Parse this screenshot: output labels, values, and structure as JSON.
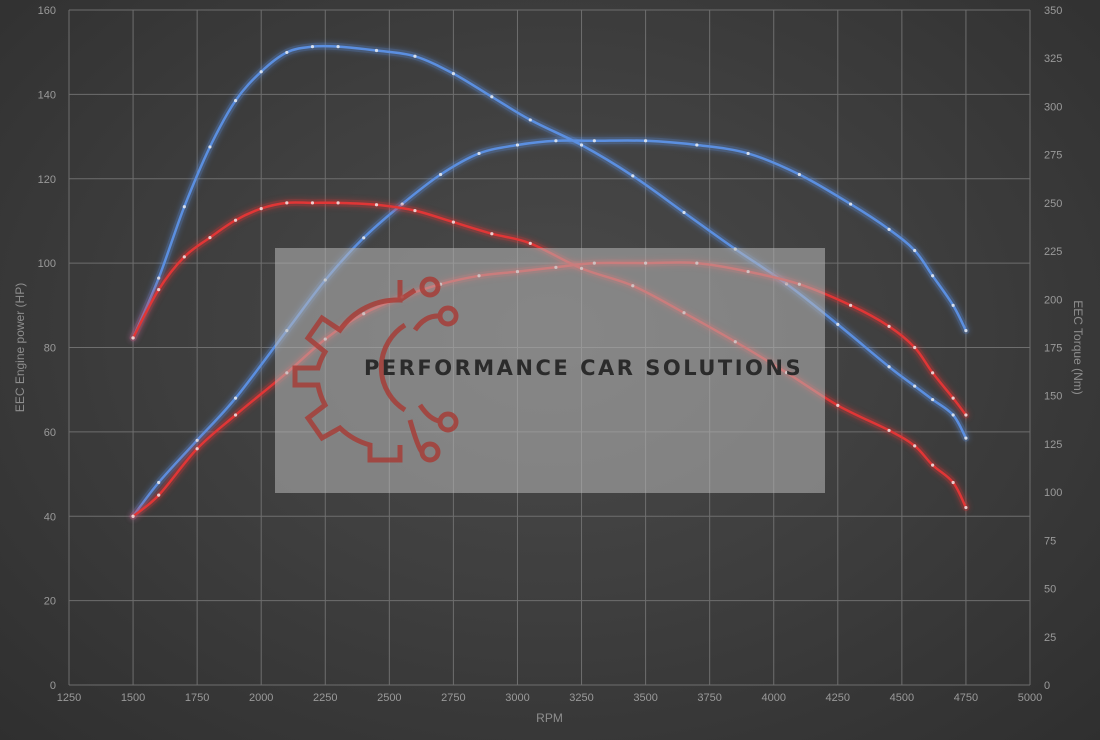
{
  "chart_data": {
    "type": "line",
    "xlabel": "RPM",
    "ylabel": "EEC Engine power (HP)",
    "y2label": "EEC Torque (Nm)",
    "xlim": [
      1250,
      5000
    ],
    "ylim": [
      0,
      160
    ],
    "y2lim": [
      0,
      350
    ],
    "x_ticks": [
      1250,
      1500,
      1750,
      2000,
      2250,
      2500,
      2750,
      3000,
      3250,
      3500,
      3750,
      4000,
      4250,
      4500,
      4750,
      5000
    ],
    "y_ticks": [
      0,
      20,
      40,
      60,
      80,
      100,
      120,
      140,
      160
    ],
    "y2_ticks": [
      0,
      25,
      50,
      75,
      100,
      125,
      150,
      175,
      200,
      225,
      250,
      275,
      300,
      325,
      350
    ],
    "grid": true,
    "legend": "none",
    "series": [
      {
        "color": "#5b8fe0",
        "axis": "left",
        "x": [
          1500,
          1600,
          1750,
          1900,
          2100,
          2250,
          2400,
          2550,
          2700,
          2850,
          3000,
          3150,
          3300,
          3500,
          3700,
          3900,
          4100,
          4300,
          4450,
          4550,
          4620,
          4700,
          4750
        ],
        "y": [
          40,
          48,
          58,
          68,
          84,
          96,
          106,
          114,
          121,
          126,
          128,
          129,
          129,
          129,
          128,
          126,
          121,
          114,
          108,
          103,
          97,
          90,
          84
        ]
      },
      {
        "color": "#5b8fe0",
        "axis": "right",
        "x": [
          1500,
          1600,
          1700,
          1800,
          1900,
          2000,
          2100,
          2200,
          2300,
          2450,
          2600,
          2750,
          2900,
          3050,
          3250,
          3450,
          3650,
          3850,
          4050,
          4250,
          4450,
          4550,
          4620,
          4700,
          4750
        ],
        "y": [
          180,
          211,
          248,
          279,
          303,
          318,
          328,
          331,
          331,
          329,
          326,
          317,
          305,
          293,
          280,
          264,
          245,
          226,
          208,
          187,
          165,
          155,
          148,
          140,
          128
        ]
      },
      {
        "color": "#e03636",
        "axis": "left",
        "x": [
          1500,
          1600,
          1750,
          1900,
          2100,
          2250,
          2400,
          2550,
          2700,
          2850,
          3000,
          3150,
          3300,
          3500,
          3700,
          3900,
          4100,
          4300,
          4450,
          4550,
          4620,
          4700,
          4750
        ],
        "y": [
          40,
          45,
          56,
          64,
          74,
          82,
          88,
          92,
          95,
          97,
          98,
          99,
          100,
          100,
          100,
          98,
          95,
          90,
          85,
          80,
          74,
          68,
          64
        ]
      },
      {
        "color": "#e03636",
        "axis": "right",
        "x": [
          1500,
          1600,
          1700,
          1800,
          1900,
          2000,
          2100,
          2200,
          2300,
          2450,
          2600,
          2750,
          2900,
          3050,
          3250,
          3450,
          3650,
          3850,
          4050,
          4250,
          4450,
          4550,
          4620,
          4700,
          4750
        ],
        "y": [
          180,
          205,
          222,
          232,
          241,
          247,
          250,
          250,
          250,
          249,
          246,
          240,
          234,
          229,
          216,
          207,
          193,
          178,
          162,
          145,
          132,
          124,
          114,
          105,
          92
        ]
      }
    ],
    "watermark": "PERFORMANCE CAR SOLUTIONS"
  }
}
